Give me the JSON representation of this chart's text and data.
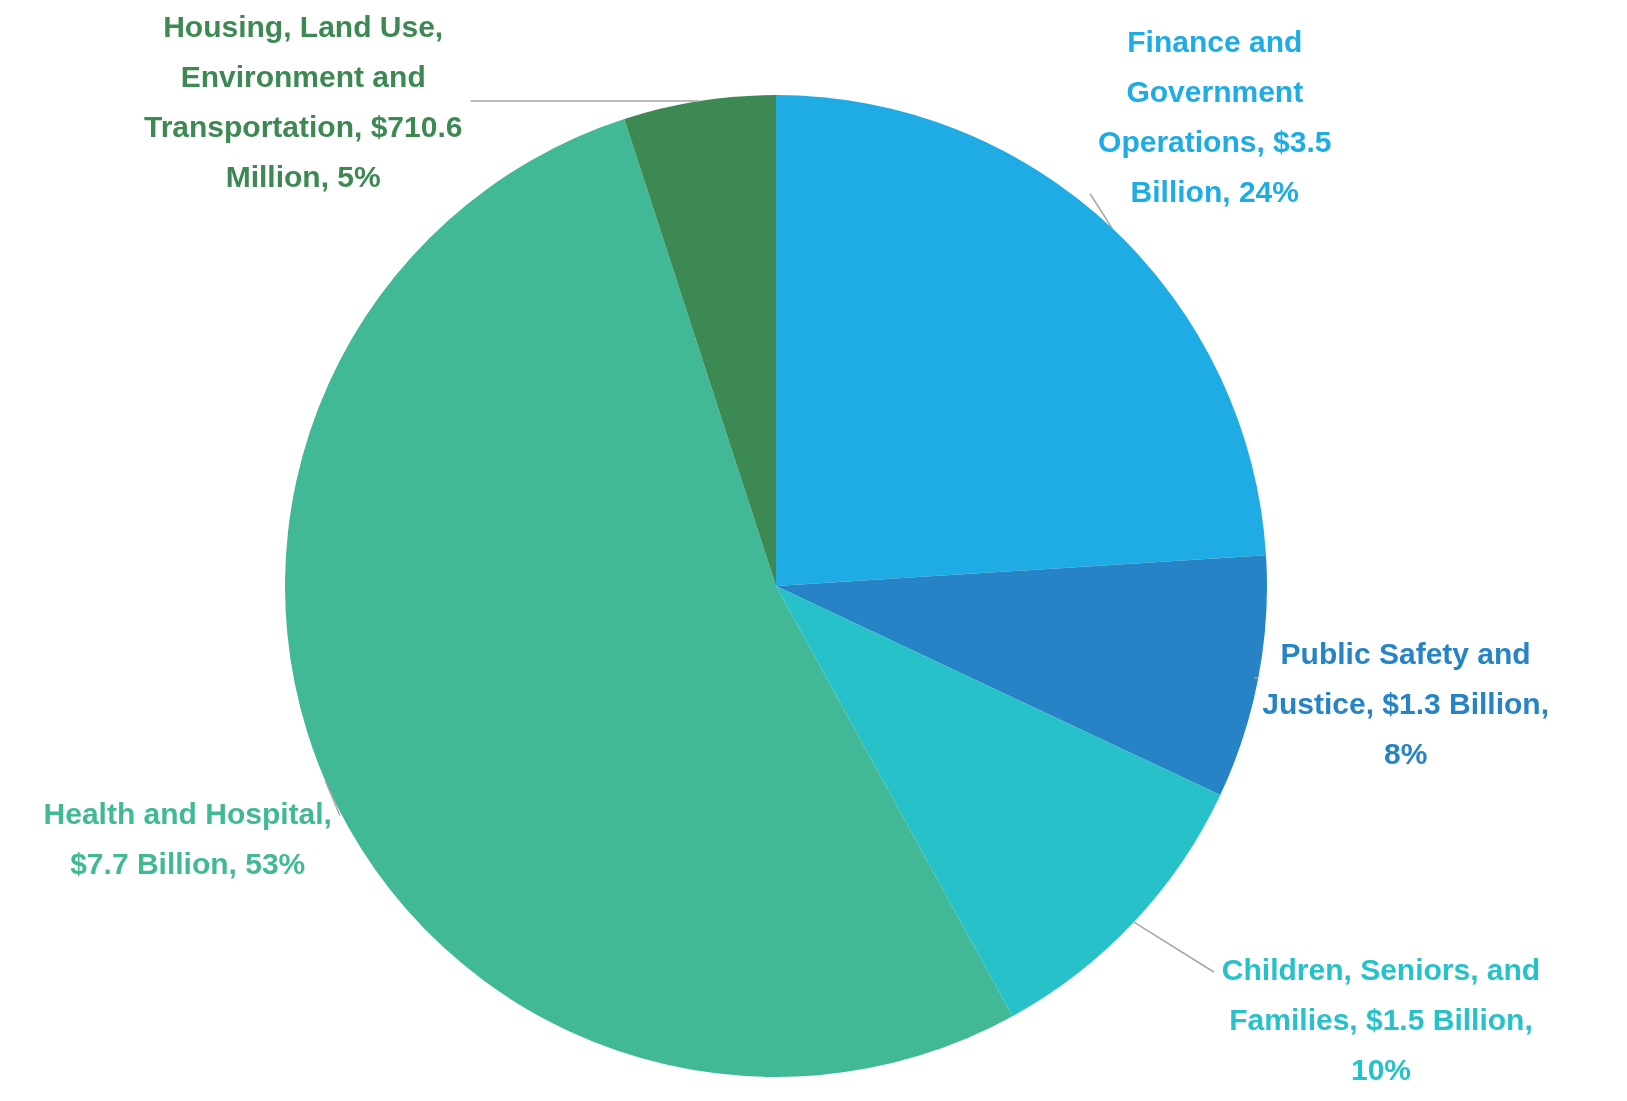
{
  "chart_data": {
    "type": "pie",
    "categories": [
      "Finance and Government Operations, $3.5 Billion, 24%",
      "Public Safety and Justice, $1.3 Billion, 8%",
      "Children, Seniors, and Families, $1.5 Billion, 10%",
      "Health and Hospital, $7.7 Billion, 53%",
      "Housing, Land Use, Environment and Transportation, $710.6 Million, 5%"
    ],
    "values": [
      24,
      8,
      10,
      53,
      5
    ],
    "colors": [
      "#1fabe3",
      "#2683c6",
      "#27c1c9",
      "#42b996",
      "#3d8953"
    ],
    "legend": false
  }
}
